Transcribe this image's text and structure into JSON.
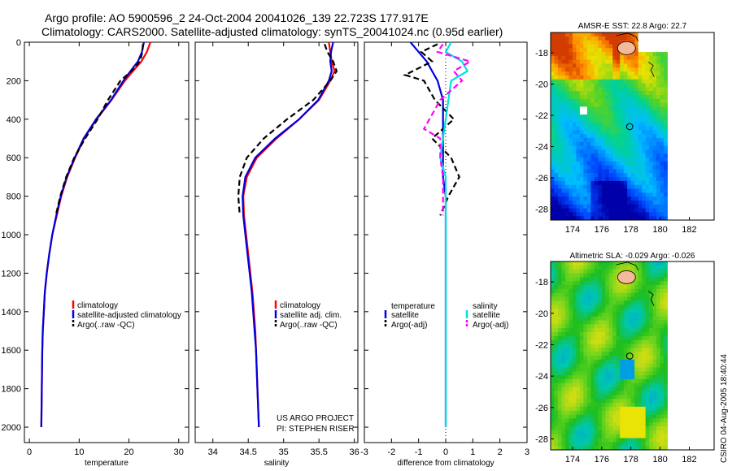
{
  "header": {
    "line1": "Argo profile: AO 5900596_2 24-Oct-2004 20041026_139 22.723S 177.917E",
    "line2": "Climatology: CARS2000. Satellite-adjusted climatology: synTS_20041024.nc (0.95d earlier)"
  },
  "credit": "CSIRO 04-Aug-2005 18:40:44",
  "colors": {
    "climatology": "#ff0000",
    "satellite": "#0000dd",
    "argo": "#000000",
    "salinity_satellite": "#00e0e0",
    "salinity_argo": "#ff00ff"
  },
  "chart_data": [
    {
      "type": "line",
      "name": "temperature-panel",
      "xlabel": "temperature",
      "xlim": [
        -1,
        32
      ],
      "ylim": [
        0,
        2080
      ],
      "y_inverted": true,
      "xticks": [
        "0",
        "10",
        "20",
        "30"
      ],
      "xtick_values": [
        0,
        10,
        20,
        30
      ],
      "yticks": [
        "0",
        "200",
        "400",
        "600",
        "800",
        "1000",
        "1200",
        "1400",
        "1600",
        "1800",
        "2000"
      ],
      "ytick_values": [
        0,
        200,
        400,
        600,
        800,
        1000,
        1200,
        1400,
        1600,
        1800,
        2000
      ],
      "legend": [
        "climatology",
        "satellite-adjusted climatology",
        "Argo(..raw -QC)"
      ],
      "legend_position": "right-middle",
      "series": [
        {
          "name": "climatology",
          "color": "#ff0000",
          "x": [
            24.3,
            23.6,
            22.5,
            20.8,
            19.2,
            16.5,
            13.5,
            11.0,
            9.2,
            7.6,
            6.4,
            5.5,
            4.6,
            4.0,
            3.5,
            3.1,
            2.9,
            2.7,
            2.6,
            2.5,
            2.4
          ],
          "y": [
            0,
            50,
            100,
            150,
            200,
            300,
            400,
            500,
            600,
            700,
            800,
            900,
            1000,
            1100,
            1200,
            1300,
            1400,
            1500,
            1600,
            1800,
            2000
          ]
        },
        {
          "name": "satellite-adjusted climatology",
          "color": "#0000dd",
          "x": [
            23.0,
            22.6,
            21.8,
            20.3,
            18.9,
            16.4,
            13.4,
            10.9,
            9.1,
            7.5,
            6.3,
            5.4,
            4.6,
            4.0,
            3.5,
            3.1,
            2.9,
            2.7,
            2.6,
            2.5,
            2.4
          ],
          "y": [
            0,
            50,
            100,
            150,
            200,
            300,
            400,
            500,
            600,
            700,
            800,
            900,
            1000,
            1100,
            1200,
            1300,
            1400,
            1500,
            1600,
            1800,
            2000
          ]
        },
        {
          "name": "Argo(..raw -QC)",
          "color": "#000000",
          "x": [
            22.8,
            22.7,
            22.2,
            20.5,
            18.3,
            15.8,
            13.7,
            11.2,
            9.0,
            7.4,
            6.2,
            5.3
          ],
          "y": [
            10,
            50,
            100,
            150,
            200,
            300,
            400,
            500,
            600,
            700,
            800,
            900
          ]
        }
      ]
    },
    {
      "type": "line",
      "name": "salinity-panel",
      "xlabel": "salinity",
      "xlim": [
        33.75,
        36.05
      ],
      "ylim": [
        0,
        2080
      ],
      "y_inverted": true,
      "xticks": [
        "34",
        "34.5",
        "35",
        "35.5",
        "36"
      ],
      "xtick_values": [
        34,
        34.5,
        35,
        35.5,
        36
      ],
      "legend": [
        "climatology",
        "satellite adj. clim.",
        "Argo(..raw -QC)"
      ],
      "legend_position": "right-middle",
      "annotation": [
        "US ARGO PROJECT",
        "PI: STEPHEN RISER"
      ],
      "series": [
        {
          "name": "climatology",
          "color": "#ff0000",
          "x": [
            35.64,
            35.66,
            35.68,
            35.72,
            35.66,
            35.5,
            35.22,
            34.9,
            34.62,
            34.48,
            34.43,
            34.44,
            34.47,
            34.5,
            34.53,
            34.56,
            34.58,
            34.6,
            34.61,
            34.63,
            34.65
          ],
          "y": [
            0,
            50,
            100,
            150,
            200,
            300,
            400,
            500,
            600,
            700,
            800,
            900,
            1000,
            1100,
            1200,
            1300,
            1400,
            1500,
            1600,
            1800,
            2000
          ]
        },
        {
          "name": "satellite adj. clim.",
          "color": "#0000dd",
          "x": [
            35.7,
            35.67,
            35.66,
            35.68,
            35.64,
            35.49,
            35.22,
            34.88,
            34.6,
            34.46,
            34.42,
            34.43,
            34.46,
            34.49,
            34.52,
            34.55,
            34.57,
            34.59,
            34.61,
            34.63,
            34.65
          ],
          "y": [
            0,
            50,
            100,
            150,
            200,
            300,
            400,
            500,
            600,
            700,
            800,
            900,
            1000,
            1100,
            1200,
            1300,
            1400,
            1500,
            1600,
            1800,
            2000
          ]
        },
        {
          "name": "Argo(..raw -QC)",
          "color": "#000000",
          "x": [
            35.58,
            35.62,
            35.7,
            35.75,
            35.66,
            35.42,
            35.05,
            34.72,
            34.48,
            34.38,
            34.36,
            34.38
          ],
          "y": [
            10,
            50,
            100,
            150,
            200,
            300,
            400,
            500,
            600,
            700,
            800,
            900
          ]
        }
      ]
    },
    {
      "type": "line",
      "name": "difference-panel",
      "xlabel": "difference from climatology",
      "xlim": [
        -3,
        3
      ],
      "ylim": [
        0,
        2080
      ],
      "y_inverted": true,
      "xticks": [
        "-3",
        "-2",
        "-1",
        "0",
        "1",
        "2",
        "3"
      ],
      "xtick_values": [
        -3,
        -2,
        -1,
        0,
        1,
        2,
        3
      ],
      "legend": [
        "temperature",
        "satellite",
        "Argo(-adj)",
        "salinity",
        "satellite",
        "Argo(-adj)"
      ],
      "legend_position": "right-middle",
      "series": [
        {
          "name": "satellite",
          "group": "temperature",
          "color": "#0000dd",
          "x": [
            -1.3,
            -1.0,
            -0.7,
            -0.5,
            -0.3,
            -0.1,
            -0.1,
            -0.1,
            -0.1,
            -0.1,
            0.0,
            0.0,
            0.0,
            0.0,
            0.0,
            0.0,
            0.0,
            0.0,
            0.0,
            0.0
          ],
          "y": [
            0,
            50,
            100,
            150,
            200,
            300,
            400,
            500,
            600,
            700,
            800,
            900,
            1000,
            1100,
            1200,
            1300,
            1400,
            1500,
            1800,
            2000
          ]
        },
        {
          "name": "Argo(-adj)",
          "group": "temperature",
          "color": "#000000",
          "x": [
            -0.3,
            -0.9,
            -0.5,
            -1.5,
            -0.8,
            -0.4,
            0.3,
            -0.5,
            0.2,
            0.5,
            0.1,
            -0.2
          ],
          "y": [
            10,
            50,
            100,
            170,
            200,
            300,
            400,
            500,
            600,
            700,
            800,
            900
          ]
        },
        {
          "name": "satellite",
          "group": "salinity",
          "color": "#00e0e0",
          "x": [
            0.2,
            0.0,
            0.6,
            0.8,
            0.2,
            0.1,
            0.0,
            -0.2,
            0.0,
            0.0,
            0.0,
            0.0,
            0.0,
            0.0,
            0.0,
            0.0,
            0.0,
            0.0,
            0.0
          ],
          "y": [
            0,
            50,
            100,
            150,
            200,
            300,
            400,
            600,
            700,
            800,
            900,
            1000,
            1100,
            1200,
            1300,
            1400,
            1500,
            1800,
            2000
          ]
        },
        {
          "name": "Argo(-adj)",
          "group": "salinity",
          "color": "#ff00ff",
          "x": [
            -0.1,
            -0.3,
            0.9,
            0.3,
            0.6,
            -0.2,
            -0.8,
            -0.2,
            -0.2,
            -0.1,
            -0.1,
            -0.1
          ],
          "y": [
            10,
            50,
            100,
            150,
            200,
            300,
            450,
            500,
            600,
            700,
            800,
            900
          ]
        }
      ]
    },
    {
      "type": "heatmap",
      "name": "sst-map",
      "title": "AMSR-E SST: 22.8 Argo: 22.7",
      "xlim": [
        172.5,
        183.7
      ],
      "ylim": [
        -28.7,
        -16.7
      ],
      "xticks": [
        "174",
        "176",
        "178",
        "180",
        "182"
      ],
      "xtick_values": [
        174,
        176,
        178,
        180,
        182
      ],
      "yticks": [
        "-18",
        "-20",
        "-22",
        "-24",
        "-26",
        "-28"
      ],
      "ytick_values": [
        -18,
        -20,
        -22,
        -24,
        -26,
        -28
      ],
      "data_lon_range": [
        172.5,
        180.3
      ],
      "marker": {
        "lon": 177.917,
        "lat": -22.723
      }
    },
    {
      "type": "heatmap",
      "name": "sla-map",
      "title": "Altimetric SLA: -0.029 Argo: -0.026",
      "xlim": [
        172.5,
        183.7
      ],
      "ylim": [
        -28.7,
        -16.7
      ],
      "xticks": [
        "174",
        "176",
        "178",
        "180",
        "182"
      ],
      "xtick_values": [
        174,
        176,
        178,
        180,
        182
      ],
      "yticks": [
        "-18",
        "-20",
        "-22",
        "-24",
        "-26",
        "-28"
      ],
      "ytick_values": [
        -18,
        -20,
        -22,
        -24,
        -26,
        -28
      ],
      "data_lon_range": [
        172.5,
        180.3
      ],
      "marker": {
        "lon": 177.917,
        "lat": -22.723
      }
    }
  ]
}
